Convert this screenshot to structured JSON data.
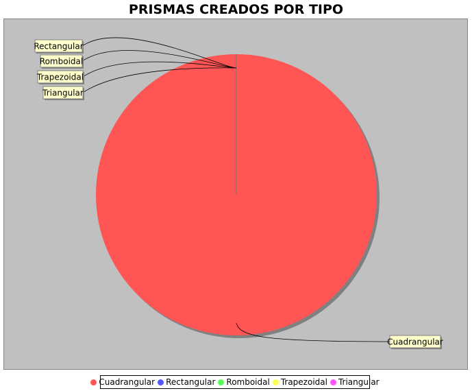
{
  "chart_data": {
    "type": "pie",
    "title": "PRISMAS CREADOS POR TIPO",
    "slices": [
      {
        "label": "Cuadrangular",
        "value": 1,
        "color": "#ff5555"
      },
      {
        "label": "Rectangular",
        "value": 0,
        "color": "#5555ff"
      },
      {
        "label": "Romboidal",
        "value": 0,
        "color": "#55ff55"
      },
      {
        "label": "Trapezoidal",
        "value": 0,
        "color": "#ffff55"
      },
      {
        "label": "Triangular",
        "value": 0,
        "color": "#ff55ff"
      }
    ],
    "plot_background": "#c0c0c0",
    "label_background": "#ffffcc",
    "legend_position": "bottom"
  }
}
